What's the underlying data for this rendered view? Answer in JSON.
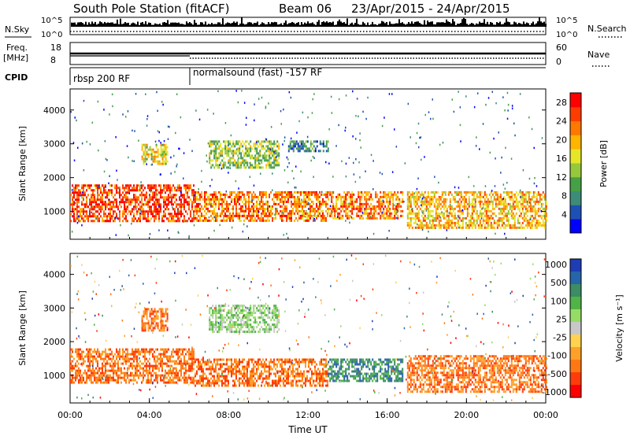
{
  "header": {
    "station": "South Pole Station (fitACF)",
    "beam": "Beam 06",
    "date_range": "23/Apr/2015 - 24/Apr/2015"
  },
  "strip_labels": {
    "nsky": "N.Sky",
    "nsearch": "N.Search",
    "freq_line1": "Freq.",
    "freq_line2": "[MHz]",
    "nave": "Nave",
    "cpid": "CPID"
  },
  "nsky_ticks": [
    "10^5",
    "10^0"
  ],
  "nsearch_ticks": [
    "10^5",
    "10^0"
  ],
  "freq_ticks": [
    "18",
    "8"
  ],
  "nave_ticks": [
    "60",
    "0"
  ],
  "cpid_segments": [
    {
      "label": "rbsp 200 RF",
      "start_hour": 0,
      "end_hour": 6.0
    },
    {
      "label": "normalsound (fast) -157 RF",
      "start_hour": 6.0,
      "end_hour": 24
    }
  ],
  "colors": {
    "power_scale": [
      "#0000ff",
      "#1e50b4",
      "#3c8c78",
      "#46a046",
      "#96c83c",
      "#e6e628",
      "#ffb400",
      "#ff7800",
      "#ff3c00",
      "#ff0000"
    ],
    "velocity_scale": [
      "#1e3cb4",
      "#2864aa",
      "#3c8c64",
      "#50b446",
      "#96dc64",
      "#c8c8c8",
      "#ffd250",
      "#ffa028",
      "#ff7814",
      "#ff3c0a",
      "#ff0000"
    ]
  },
  "chart_data": [
    {
      "type": "heatmap",
      "title": "Power",
      "xlabel": "",
      "ylabel": "Slant Range [km]",
      "x_range_hours": [
        0,
        24
      ],
      "y_range": [
        200,
        4600
      ],
      "ytick_labels": [
        "1000",
        "2000",
        "3000",
        "4000"
      ],
      "ytick_values": [
        1000,
        2000,
        3000,
        4000
      ],
      "colorbar": {
        "label": "Power [dB]",
        "tick_labels": [
          "4",
          "8",
          "12",
          "16",
          "20",
          "24",
          "28"
        ],
        "range": [
          0,
          30
        ]
      },
      "features": [
        {
          "start_hour": 0.0,
          "end_hour": 6.2,
          "range_low": 700,
          "range_high": 1800,
          "value_db": 26
        },
        {
          "start_hour": 3.6,
          "end_hour": 4.9,
          "range_low": 2400,
          "range_high": 3000,
          "value_db": 18
        },
        {
          "start_hour": 6.2,
          "end_hour": 13.0,
          "range_low": 700,
          "range_high": 1600,
          "value_db": 24
        },
        {
          "start_hour": 7.0,
          "end_hour": 10.5,
          "range_low": 2300,
          "range_high": 3100,
          "value_db": 14
        },
        {
          "start_hour": 11.0,
          "end_hour": 13.0,
          "range_low": 2800,
          "range_high": 3100,
          "value_db": 8
        },
        {
          "start_hour": 13.0,
          "end_hour": 16.8,
          "range_low": 800,
          "range_high": 1600,
          "value_db": 22
        },
        {
          "start_hour": 17.0,
          "end_hour": 24.0,
          "range_low": 500,
          "range_high": 1600,
          "value_db": 20
        }
      ]
    },
    {
      "type": "heatmap",
      "title": "Velocity",
      "xlabel": "Time UT",
      "ylabel": "Slant Range [km]",
      "x_range_hours": [
        0,
        24
      ],
      "xtick_labels": [
        "00:00",
        "04:00",
        "08:00",
        "12:00",
        "16:00",
        "20:00",
        "00:00"
      ],
      "xtick_values": [
        0,
        4,
        8,
        12,
        16,
        20,
        24
      ],
      "y_range": [
        200,
        4600
      ],
      "ytick_labels": [
        "1000",
        "2000",
        "3000",
        "4000"
      ],
      "ytick_values": [
        1000,
        2000,
        3000,
        4000
      ],
      "colorbar": {
        "label": "Velocity [m s⁻¹]",
        "tick_labels": [
          "1000",
          "500",
          "100",
          "25",
          "-25",
          "-100",
          "-500",
          "-1000"
        ]
      },
      "features": [
        {
          "start_hour": 0.0,
          "end_hour": 6.2,
          "range_low": 800,
          "range_high": 1800,
          "value_ms": -150
        },
        {
          "start_hour": 3.6,
          "end_hour": 4.9,
          "range_low": 2300,
          "range_high": 3000,
          "value_ms": -200
        },
        {
          "start_hour": 6.2,
          "end_hour": 13.0,
          "range_low": 700,
          "range_high": 1500,
          "value_ms": -200
        },
        {
          "start_hour": 7.0,
          "end_hour": 10.5,
          "range_low": 2300,
          "range_high": 3100,
          "value_ms": 50
        },
        {
          "start_hour": 13.0,
          "end_hour": 16.8,
          "range_low": 800,
          "range_high": 1500,
          "value_ms": 120
        },
        {
          "start_hour": 17.0,
          "end_hour": 24.0,
          "range_low": 500,
          "range_high": 1600,
          "value_ms": -150
        }
      ]
    }
  ]
}
